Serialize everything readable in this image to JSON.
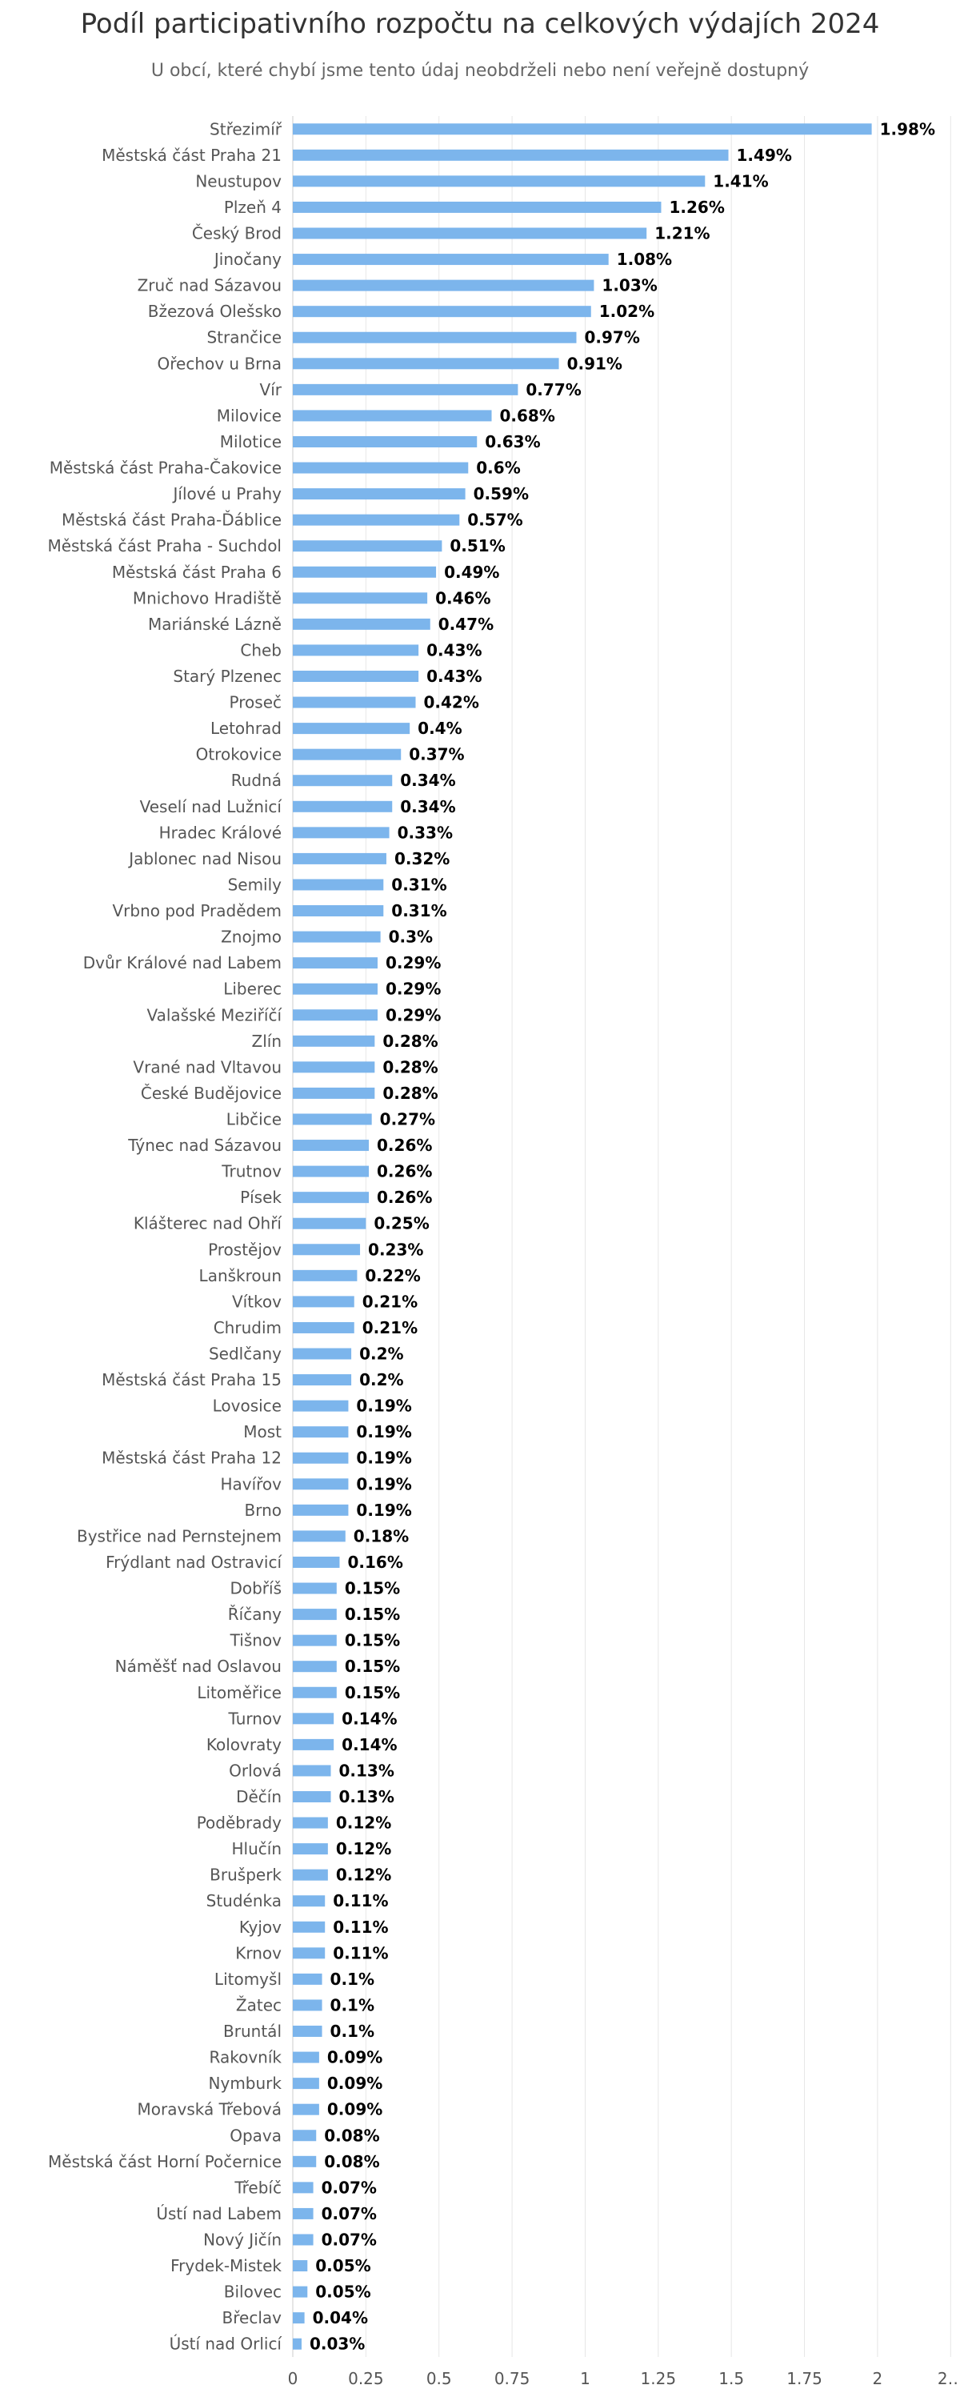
{
  "chart_data": {
    "type": "bar",
    "orientation": "horizontal",
    "title": "Podíl participativního rozpočtu na celkových výdajích 2024",
    "subtitle": "U obcí, které chybí jsme tento údaj neobdrželi nebo není veřejně dostupný",
    "xlabel": "",
    "ylabel": "",
    "xlim": [
      0,
      2.2
    ],
    "grid": true,
    "tick_labels": [
      "0",
      "0.25",
      "0.5",
      "0.75",
      "1",
      "1.25",
      "1.5",
      "1.75",
      "2",
      "2…"
    ],
    "bar_color": "#7cb5ec",
    "categories": [
      "Střezimíř",
      "Městská část Praha 21",
      "Neustupov",
      "Plzeň 4",
      "Český Brod",
      "Jinočany",
      "Zruč nad Sázavou",
      "Bžezová Olešsko",
      "Strančice",
      "Ořechov u Brna",
      "Vír",
      "Milovice",
      "Milotice",
      "Městská část Praha-Čakovice",
      "Jílové u Prahy",
      "Městská část Praha-Ďáblice",
      "Městská část Praha - Suchdol",
      "Městská část Praha 6",
      "Mnichovo Hradiště",
      "Mariánské Lázně",
      "Cheb",
      "Starý Plzenec",
      "Proseč",
      "Letohrad",
      "Otrokovice",
      "Rudná",
      "Veselí nad Lužnicí",
      "Hradec Králové",
      "Jablonec nad Nisou",
      "Semily",
      "Vrbno pod Pradědem",
      "Znojmo",
      "Dvůr Králové nad Labem",
      "Liberec",
      "Valašské Meziříčí",
      "Zlín",
      "Vrané nad Vltavou",
      "České Budějovice",
      "Libčice",
      "Týnec nad Sázavou",
      "Trutnov",
      "Písek",
      "Klášterec nad Ohří",
      "Prostějov",
      "Lanškroun",
      "Vítkov",
      "Chrudim",
      "Sedlčany",
      "Městská část Praha 15",
      "Lovosice",
      "Most",
      "Městská část Praha 12",
      "Havířov",
      "Brno",
      "Bystřice nad Pernstejnem",
      "Frýdlant nad Ostravicí",
      "Dobříš",
      "Říčany",
      "Tišnov",
      "Náměšť nad Oslavou",
      "Litoměřice",
      "Turnov",
      "Kolovraty",
      "Orlová",
      "Děčín",
      "Poděbrady",
      "Hlučín",
      "Brušperk",
      "Studénka",
      "Kyjov",
      "Krnov",
      "Litomyšl",
      "Žatec",
      "Bruntál",
      "Rakovník",
      "Nymburk",
      "Moravská Třebová",
      "Opava",
      "Městská část Horní Počernice",
      "Třebíč",
      "Ústí nad Labem",
      "Nový Jičín",
      "Frydek-Mistek",
      "Bilovec",
      "Břeclav",
      "Ústí nad Orlicí"
    ],
    "values": [
      1.98,
      1.49,
      1.41,
      1.26,
      1.21,
      1.08,
      1.03,
      1.02,
      0.97,
      0.91,
      0.77,
      0.68,
      0.63,
      0.6,
      0.59,
      0.57,
      0.51,
      0.49,
      0.46,
      0.47,
      0.43,
      0.43,
      0.42,
      0.4,
      0.37,
      0.34,
      0.34,
      0.33,
      0.32,
      0.31,
      0.31,
      0.3,
      0.29,
      0.29,
      0.29,
      0.28,
      0.28,
      0.28,
      0.27,
      0.26,
      0.26,
      0.26,
      0.25,
      0.23,
      0.22,
      0.21,
      0.21,
      0.2,
      0.2,
      0.19,
      0.19,
      0.19,
      0.19,
      0.19,
      0.18,
      0.16,
      0.15,
      0.15,
      0.15,
      0.15,
      0.15,
      0.14,
      0.14,
      0.13,
      0.13,
      0.12,
      0.12,
      0.12,
      0.11,
      0.11,
      0.11,
      0.1,
      0.1,
      0.1,
      0.09,
      0.09,
      0.09,
      0.08,
      0.08,
      0.07,
      0.07,
      0.07,
      0.05,
      0.05,
      0.04,
      0.03
    ],
    "data_labels": [
      "1.98%",
      "1.49%",
      "1.41%",
      "1.26%",
      "1.21%",
      "1.08%",
      "1.03%",
      "1.02%",
      "0.97%",
      "0.91%",
      "0.77%",
      "0.68%",
      "0.63%",
      "0.6%",
      "0.59%",
      "0.57%",
      "0.51%",
      "0.49%",
      "0.46%",
      "0.47%",
      "0.43%",
      "0.43%",
      "0.42%",
      "0.4%",
      "0.37%",
      "0.34%",
      "0.34%",
      "0.33%",
      "0.32%",
      "0.31%",
      "0.31%",
      "0.3%",
      "0.29%",
      "0.29%",
      "0.29%",
      "0.28%",
      "0.28%",
      "0.28%",
      "0.27%",
      "0.26%",
      "0.26%",
      "0.26%",
      "0.25%",
      "0.23%",
      "0.22%",
      "0.21%",
      "0.21%",
      "0.2%",
      "0.2%",
      "0.19%",
      "0.19%",
      "0.19%",
      "0.19%",
      "0.19%",
      "0.18%",
      "0.16%",
      "0.15%",
      "0.15%",
      "0.15%",
      "0.15%",
      "0.15%",
      "0.14%",
      "0.14%",
      "0.13%",
      "0.13%",
      "0.12%",
      "0.12%",
      "0.12%",
      "0.11%",
      "0.11%",
      "0.11%",
      "0.1%",
      "0.1%",
      "0.1%",
      "0.09%",
      "0.09%",
      "0.09%",
      "0.08%",
      "0.08%",
      "0.07%",
      "0.07%",
      "0.07%",
      "0.05%",
      "0.05%",
      "0.04%",
      "0.03%"
    ]
  }
}
